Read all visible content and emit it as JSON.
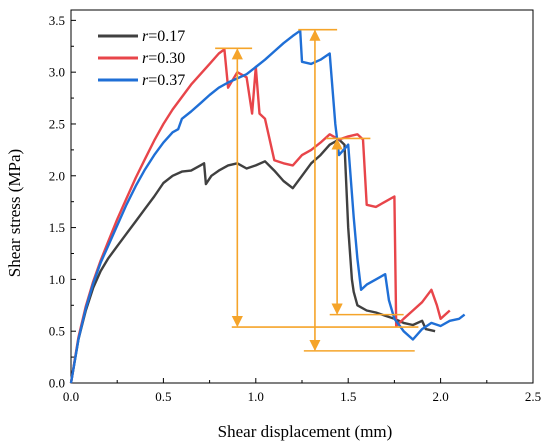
{
  "chart_data": {
    "type": "line",
    "title": "",
    "xlabel": "Shear displacement (mm)",
    "ylabel": "Shear stress (MPa)",
    "xlim": [
      0,
      2.5
    ],
    "ylim": [
      0,
      3.6
    ],
    "xticks": [
      "0.0",
      "0.5",
      "1.0",
      "1.5",
      "2.0",
      "2.5"
    ],
    "yticks": [
      "0.0",
      "0.5",
      "1.0",
      "1.5",
      "2.0",
      "2.5",
      "3.0",
      "3.5"
    ],
    "grid": false,
    "legend_position": "top-left",
    "series": [
      {
        "name_prefix": "r",
        "name_suffix": "=0.17",
        "color": "#404040",
        "points": [
          [
            0,
            0
          ],
          [
            0.04,
            0.42
          ],
          [
            0.08,
            0.7
          ],
          [
            0.12,
            0.92
          ],
          [
            0.16,
            1.08
          ],
          [
            0.2,
            1.2
          ],
          [
            0.25,
            1.32
          ],
          [
            0.3,
            1.44
          ],
          [
            0.35,
            1.56
          ],
          [
            0.4,
            1.68
          ],
          [
            0.45,
            1.8
          ],
          [
            0.5,
            1.93
          ],
          [
            0.55,
            2.0
          ],
          [
            0.6,
            2.04
          ],
          [
            0.65,
            2.05
          ],
          [
            0.7,
            2.1
          ],
          [
            0.72,
            2.12
          ],
          [
            0.73,
            1.92
          ],
          [
            0.76,
            2.0
          ],
          [
            0.8,
            2.05
          ],
          [
            0.85,
            2.1
          ],
          [
            0.9,
            2.12
          ],
          [
            0.95,
            2.07
          ],
          [
            1.0,
            2.1
          ],
          [
            1.05,
            2.14
          ],
          [
            1.1,
            2.05
          ],
          [
            1.15,
            1.95
          ],
          [
            1.2,
            1.88
          ],
          [
            1.25,
            2.0
          ],
          [
            1.3,
            2.12
          ],
          [
            1.35,
            2.2
          ],
          [
            1.4,
            2.3
          ],
          [
            1.45,
            2.35
          ],
          [
            1.48,
            2.3
          ],
          [
            1.5,
            1.5
          ],
          [
            1.52,
            1.0
          ],
          [
            1.53,
            0.88
          ],
          [
            1.55,
            0.75
          ],
          [
            1.6,
            0.7
          ],
          [
            1.65,
            0.68
          ],
          [
            1.7,
            0.65
          ],
          [
            1.75,
            0.62
          ],
          [
            1.8,
            0.58
          ],
          [
            1.85,
            0.56
          ],
          [
            1.9,
            0.6
          ],
          [
            1.92,
            0.52
          ],
          [
            1.97,
            0.5
          ]
        ]
      },
      {
        "name_prefix": "r",
        "name_suffix": "=0.30",
        "color": "#e8454a",
        "points": [
          [
            0,
            0
          ],
          [
            0.04,
            0.44
          ],
          [
            0.08,
            0.74
          ],
          [
            0.12,
            0.98
          ],
          [
            0.16,
            1.18
          ],
          [
            0.2,
            1.36
          ],
          [
            0.25,
            1.58
          ],
          [
            0.3,
            1.78
          ],
          [
            0.35,
            1.98
          ],
          [
            0.4,
            2.16
          ],
          [
            0.45,
            2.34
          ],
          [
            0.5,
            2.5
          ],
          [
            0.55,
            2.64
          ],
          [
            0.6,
            2.76
          ],
          [
            0.65,
            2.88
          ],
          [
            0.7,
            2.98
          ],
          [
            0.75,
            3.08
          ],
          [
            0.8,
            3.18
          ],
          [
            0.83,
            3.22
          ],
          [
            0.85,
            2.85
          ],
          [
            0.9,
            3.0
          ],
          [
            0.95,
            2.95
          ],
          [
            0.98,
            2.6
          ],
          [
            1.0,
            3.05
          ],
          [
            1.02,
            2.6
          ],
          [
            1.05,
            2.55
          ],
          [
            1.1,
            2.15
          ],
          [
            1.15,
            2.12
          ],
          [
            1.2,
            2.1
          ],
          [
            1.25,
            2.2
          ],
          [
            1.3,
            2.25
          ],
          [
            1.35,
            2.32
          ],
          [
            1.4,
            2.4
          ],
          [
            1.45,
            2.35
          ],
          [
            1.5,
            2.38
          ],
          [
            1.55,
            2.4
          ],
          [
            1.58,
            2.35
          ],
          [
            1.6,
            1.72
          ],
          [
            1.65,
            1.7
          ],
          [
            1.7,
            1.75
          ],
          [
            1.75,
            1.8
          ],
          [
            1.76,
            0.55
          ],
          [
            1.8,
            0.62
          ],
          [
            1.85,
            0.7
          ],
          [
            1.9,
            0.78
          ],
          [
            1.95,
            0.9
          ],
          [
            1.98,
            0.75
          ],
          [
            2.0,
            0.62
          ],
          [
            2.05,
            0.7
          ]
        ]
      },
      {
        "name_prefix": "r",
        "name_suffix": "=0.37",
        "color": "#1f6fd6",
        "points": [
          [
            0,
            0
          ],
          [
            0.04,
            0.42
          ],
          [
            0.08,
            0.72
          ],
          [
            0.12,
            0.96
          ],
          [
            0.16,
            1.16
          ],
          [
            0.2,
            1.32
          ],
          [
            0.25,
            1.52
          ],
          [
            0.3,
            1.72
          ],
          [
            0.35,
            1.9
          ],
          [
            0.4,
            2.06
          ],
          [
            0.45,
            2.2
          ],
          [
            0.5,
            2.32
          ],
          [
            0.55,
            2.42
          ],
          [
            0.58,
            2.45
          ],
          [
            0.6,
            2.55
          ],
          [
            0.65,
            2.62
          ],
          [
            0.7,
            2.7
          ],
          [
            0.75,
            2.78
          ],
          [
            0.8,
            2.85
          ],
          [
            0.85,
            2.9
          ],
          [
            0.9,
            2.94
          ],
          [
            0.95,
            2.98
          ],
          [
            1.0,
            3.05
          ],
          [
            1.05,
            3.12
          ],
          [
            1.1,
            3.2
          ],
          [
            1.15,
            3.28
          ],
          [
            1.2,
            3.35
          ],
          [
            1.24,
            3.4
          ],
          [
            1.25,
            3.1
          ],
          [
            1.3,
            3.08
          ],
          [
            1.35,
            3.12
          ],
          [
            1.4,
            3.18
          ],
          [
            1.43,
            2.5
          ],
          [
            1.45,
            2.2
          ],
          [
            1.5,
            2.3
          ],
          [
            1.53,
            1.6
          ],
          [
            1.55,
            1.2
          ],
          [
            1.57,
            0.9
          ],
          [
            1.6,
            0.95
          ],
          [
            1.65,
            1.0
          ],
          [
            1.7,
            1.05
          ],
          [
            1.72,
            0.8
          ],
          [
            1.75,
            0.62
          ],
          [
            1.78,
            0.55
          ],
          [
            1.8,
            0.5
          ],
          [
            1.85,
            0.42
          ],
          [
            1.9,
            0.52
          ],
          [
            1.95,
            0.58
          ],
          [
            2.0,
            0.55
          ],
          [
            2.05,
            0.6
          ],
          [
            2.1,
            0.62
          ],
          [
            2.13,
            0.66
          ]
        ]
      }
    ],
    "annotations": {
      "color": "#f5a42a",
      "horizontal_lines": [
        {
          "y": 3.23,
          "x_from": 0.78,
          "x_to": 0.98
        },
        {
          "y": 3.41,
          "x_from": 1.23,
          "x_to": 1.44
        },
        {
          "y": 2.36,
          "x_from": 1.38,
          "x_to": 1.62
        },
        {
          "y": 0.54,
          "x_from": 0.87,
          "x_to": 1.88
        },
        {
          "y": 0.66,
          "x_from": 1.4,
          "x_to": 1.8
        },
        {
          "y": 0.31,
          "x_from": 1.26,
          "x_to": 1.86
        }
      ],
      "arrows": [
        {
          "x": 0.9,
          "y_from": 3.23,
          "y_to": 0.54
        },
        {
          "x": 1.32,
          "y_from": 3.41,
          "y_to": 0.31
        },
        {
          "x": 1.44,
          "y_from": 2.36,
          "y_to": 0.66
        }
      ]
    }
  }
}
